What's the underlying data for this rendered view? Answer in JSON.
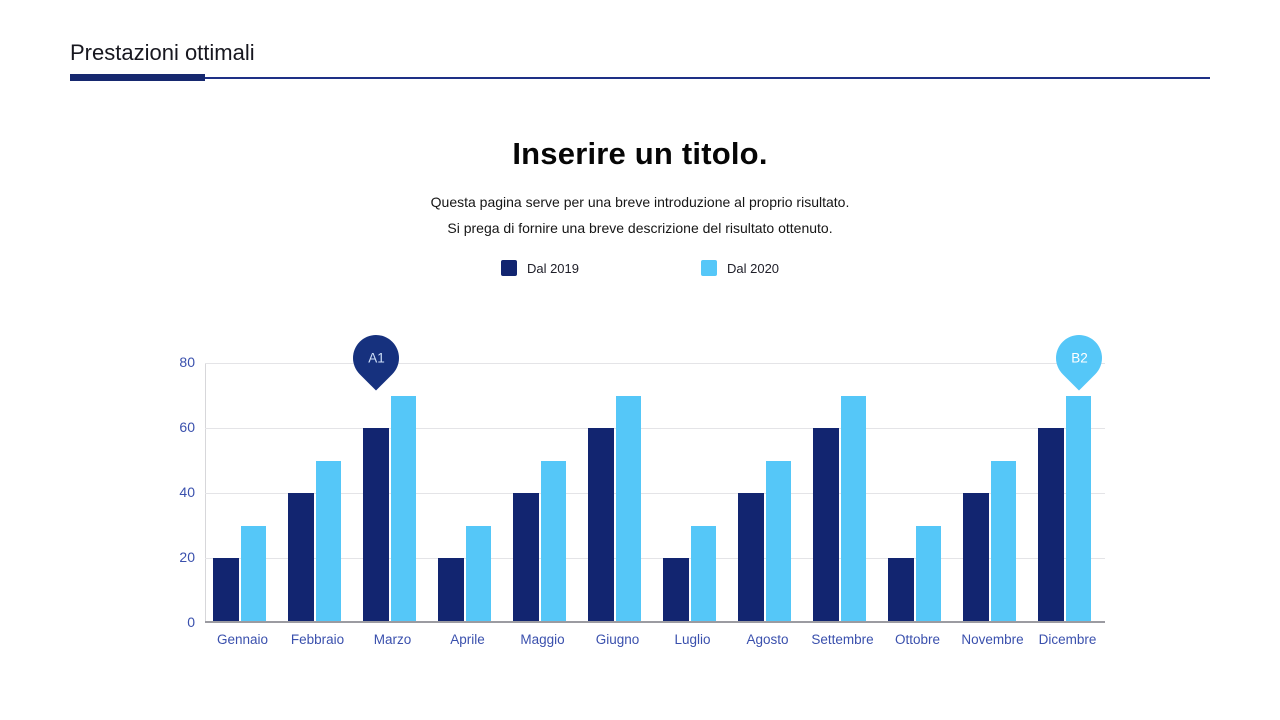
{
  "header": {
    "title": "Prestazioni ottimali"
  },
  "intro": {
    "title": "Inserire un titolo.",
    "description_line1": "Questa pagina serve per una breve introduzione al proprio risultato.",
    "description_line2": "Si prega di fornire una breve descrizione del risultato ottenuto."
  },
  "chart_data": {
    "type": "bar",
    "categories": [
      "Gennaio",
      "Febbraio",
      "Marzo",
      "Aprile",
      "Maggio",
      "Giugno",
      "Luglio",
      "Agosto",
      "Settembre",
      "Ottobre",
      "Novembre",
      "Dicembre"
    ],
    "series": [
      {
        "name": "Dal 2019",
        "color": "#122570",
        "values": [
          20,
          40,
          60,
          20,
          40,
          60,
          20,
          40,
          60,
          20,
          40,
          60
        ]
      },
      {
        "name": "Dal 2020",
        "color": "#55c7f8",
        "values": [
          30,
          50,
          70,
          30,
          50,
          70,
          30,
          50,
          70,
          30,
          50,
          70
        ]
      }
    ],
    "title": "",
    "xlabel": "",
    "ylabel": "",
    "ylim": [
      0,
      80
    ],
    "yticks": [
      0,
      20,
      40,
      60,
      80
    ],
    "grid": true,
    "legend_position": "top-center",
    "axis_label_color": "#3a50ad",
    "annotations": [
      {
        "text": "A1",
        "category": "Marzo",
        "series": 0,
        "color": "#16317e",
        "text_color": "#cfe0f8"
      },
      {
        "text": "B2",
        "category": "Dicembre",
        "series": 1,
        "color": "#55c7f8",
        "text_color": "#ffffff"
      }
    ]
  }
}
